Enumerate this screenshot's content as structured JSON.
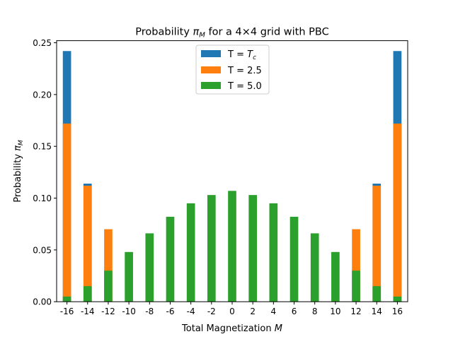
{
  "chart_data": {
    "type": "bar",
    "title_parts": [
      "Probability ",
      "π",
      "M",
      " for a 4×4 grid with PBC"
    ],
    "xlabel_parts": [
      "Total Magnetization ",
      "M"
    ],
    "ylabel_parts": [
      "Probability ",
      "π",
      "M"
    ],
    "x": [
      -16,
      -14,
      -12,
      -10,
      -8,
      -6,
      -4,
      -2,
      0,
      2,
      4,
      6,
      8,
      10,
      12,
      14,
      16
    ],
    "x_tick_labels": [
      "-16",
      "-14",
      "-12",
      "-10",
      "-8",
      "-6",
      "-4",
      "-2",
      "0",
      "2",
      "4",
      "6",
      "8",
      "10",
      "12",
      "14",
      "16"
    ],
    "y_tick_labels": [
      "0.00",
      "0.05",
      "0.10",
      "0.15",
      "0.20",
      "0.25"
    ],
    "y_ticks": [
      0,
      0.05,
      0.1,
      0.15,
      0.2,
      0.25
    ],
    "xlim": [
      -17,
      17
    ],
    "ylim": [
      0,
      0.252
    ],
    "series": [
      {
        "name_parts": [
          "T = ",
          "T",
          "c"
        ],
        "color": "#1f77b4",
        "values": [
          0.242,
          0.114,
          0.0,
          0.0,
          0.0,
          0.0,
          0.0,
          0.0,
          0.0,
          0.0,
          0.0,
          0.0,
          0.0,
          0.0,
          0.0,
          0.114,
          0.242
        ]
      },
      {
        "name_parts": [
          "T = 2.5"
        ],
        "color": "#ff7f0e",
        "values": [
          0.172,
          0.112,
          0.07,
          0.0,
          0.0,
          0.0,
          0.0,
          0.0,
          0.0,
          0.0,
          0.0,
          0.0,
          0.0,
          0.0,
          0.07,
          0.112,
          0.172
        ]
      },
      {
        "name_parts": [
          "T = 5.0"
        ],
        "color": "#2ca02c",
        "values": [
          0.005,
          0.015,
          0.03,
          0.048,
          0.066,
          0.082,
          0.095,
          0.103,
          0.107,
          0.103,
          0.095,
          0.082,
          0.066,
          0.048,
          0.03,
          0.015,
          0.005
        ]
      }
    ],
    "legend_position": "top-center",
    "grid": false
  }
}
